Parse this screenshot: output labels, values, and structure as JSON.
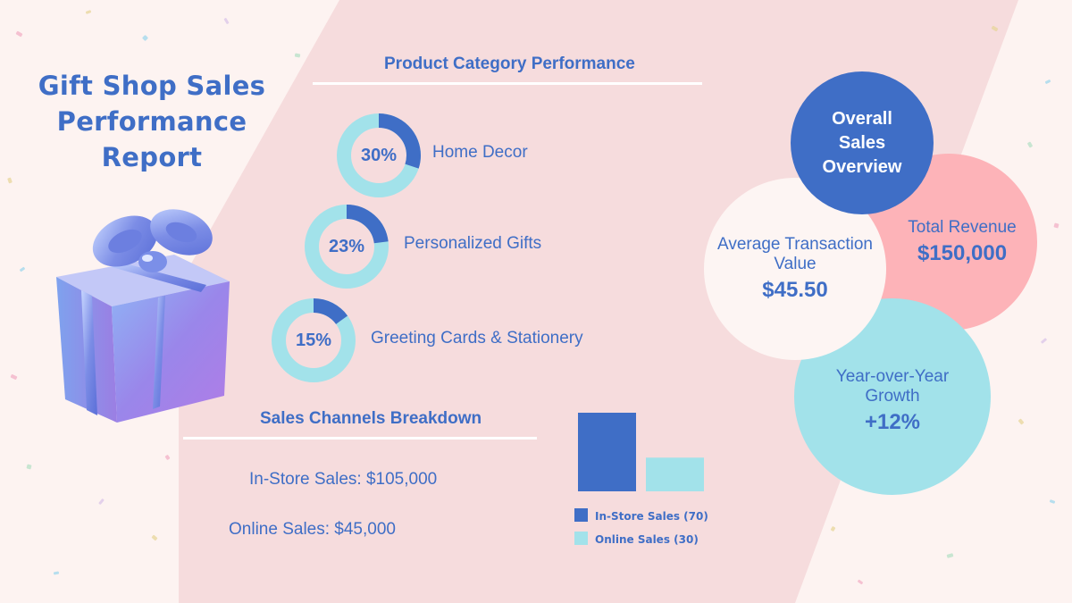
{
  "title": "Gift Shop Sales Performance Report",
  "colors": {
    "primary": "#3f6ec6",
    "teal": "#a2e2ea",
    "pink": "#fdb3b8",
    "band": "#f6dcdd",
    "background": "#fdf3f1"
  },
  "sections": {
    "product_heading": "Product Category Performance",
    "channels_heading": "Sales Channels Breakdown"
  },
  "categories": [
    {
      "pct_label": "30%",
      "value": 30,
      "name": "Home Decor"
    },
    {
      "pct_label": "23%",
      "value": 23,
      "name": "Personalized Gifts"
    },
    {
      "pct_label": "15%",
      "value": 15,
      "name": "Greeting Cards & Stationery"
    }
  ],
  "channels": {
    "in_store_text": "In-Store Sales: $105,000",
    "online_text": "Online Sales: $45,000"
  },
  "overview": {
    "heading": "Overall Sales Overview",
    "total_revenue_label": "Total Revenue",
    "total_revenue_value": "$150,000",
    "avg_transaction_label": "Average Transaction Value",
    "avg_transaction_value": "$45.50",
    "yoy_label": "Year-over-Year Growth",
    "yoy_value": "+12%"
  },
  "chart_data": {
    "type": "bar",
    "title": "",
    "categories": [
      "In-Store Sales",
      "Online Sales"
    ],
    "values": [
      70,
      30
    ],
    "legend": [
      "In-Store Sales (70)",
      "Online Sales (30)"
    ],
    "colors": [
      "#3f6ec6",
      "#a2e2ea"
    ],
    "ylim": [
      0,
      70
    ],
    "xlabel": "",
    "ylabel": "",
    "legend_position": "bottom"
  }
}
